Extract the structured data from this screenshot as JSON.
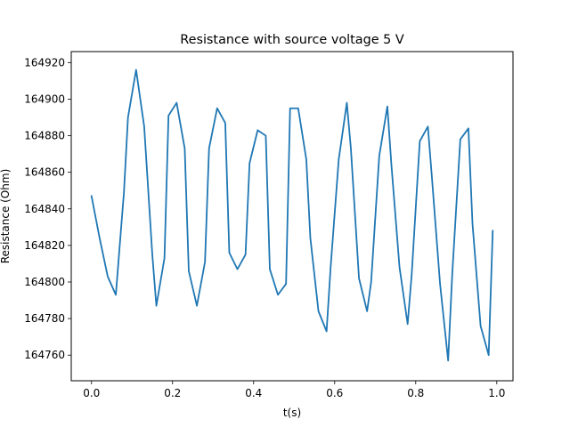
{
  "chart_data": {
    "type": "line",
    "title": "Resistance with source voltage 5 V",
    "xlabel": "t(s)",
    "ylabel": "Resistance (Ohm)",
    "xlim": [
      -0.05,
      1.04
    ],
    "ylim": [
      164746,
      164926
    ],
    "xticks": [
      "0.0",
      "0.2",
      "0.4",
      "0.6",
      "0.8",
      "1.0"
    ],
    "yticks": [
      "164760",
      "164780",
      "164800",
      "164820",
      "164840",
      "164860",
      "164880",
      "164900",
      "164920"
    ],
    "grid": false,
    "line_color": "#1f77b4",
    "series": [
      {
        "x": [
          0.0,
          0.02,
          0.04,
          0.06,
          0.08,
          0.09,
          0.11,
          0.13,
          0.15,
          0.16,
          0.18,
          0.19,
          0.21,
          0.23,
          0.24,
          0.26,
          0.28,
          0.29,
          0.31,
          0.33,
          0.34,
          0.36,
          0.38,
          0.39,
          0.41,
          0.43,
          0.44,
          0.46,
          0.48,
          0.49,
          0.51,
          0.53,
          0.54,
          0.56,
          0.58,
          0.59,
          0.61,
          0.63,
          0.64,
          0.66,
          0.68,
          0.69,
          0.71,
          0.73,
          0.74,
          0.76,
          0.78,
          0.79,
          0.81,
          0.83,
          0.84,
          0.86,
          0.88,
          0.89,
          0.91,
          0.93,
          0.94,
          0.96,
          0.98,
          0.99
        ],
        "y": [
          164847,
          164824,
          164803,
          164793,
          164849,
          164890,
          164916,
          164885,
          164815,
          164787,
          164813,
          164891,
          164898,
          164873,
          164806,
          164787,
          164811,
          164873,
          164895,
          164887,
          164816,
          164807,
          164815,
          164865,
          164883,
          164880,
          164807,
          164793,
          164799,
          164895,
          164895,
          164867,
          164824,
          164784,
          164773,
          164808,
          164867,
          164898,
          164873,
          164802,
          164784,
          164800,
          164869,
          164896,
          164864,
          164808,
          164777,
          164804,
          164877,
          164885,
          164857,
          164799,
          164757,
          164804,
          164878,
          164884,
          164832,
          164776,
          164760,
          164828
        ]
      }
    ]
  }
}
